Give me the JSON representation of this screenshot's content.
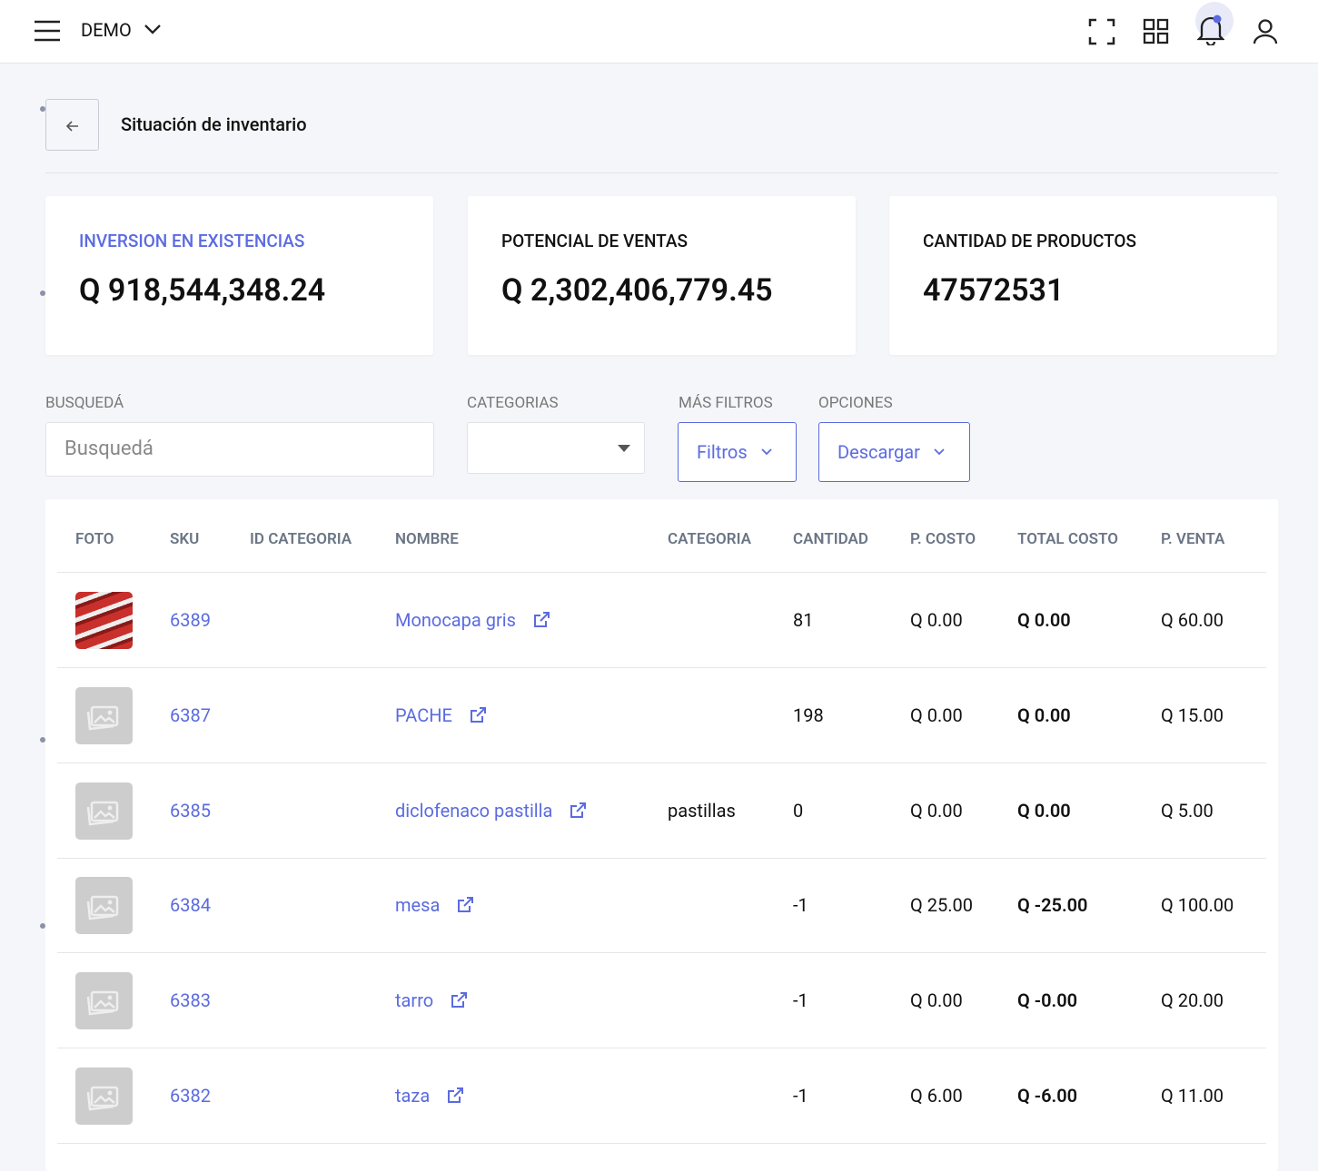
{
  "header": {
    "brand": "DEMO"
  },
  "page": {
    "title": "Situación de inventario"
  },
  "cards": [
    {
      "label": "INVERSION EN EXISTENCIAS",
      "value": "Q 918,544,348.24"
    },
    {
      "label": "POTENCIAL DE VENTAS",
      "value": "Q 2,302,406,779.45"
    },
    {
      "label": "CANTIDAD DE PRODUCTOS",
      "value": "47572531"
    }
  ],
  "filters": {
    "search_label": "BUSQUEDÁ",
    "search_placeholder": "Busquedá",
    "categories_label": "CATEGORIAS",
    "more_label": "MÁS FILTROS",
    "more_button": "Filtros",
    "options_label": "OPCIONES",
    "options_button": "Descargar"
  },
  "table": {
    "columns": [
      "FOTO",
      "SKU",
      "ID CATEGORIA",
      "NOMBRE",
      "CATEGORIA",
      "CANTIDAD",
      "P. COSTO",
      "TOTAL COSTO",
      "P. VENTA"
    ],
    "rows": [
      {
        "sku": "6389",
        "nombre": "Monocapa gris",
        "cantidad": "81",
        "p_costo": "Q 0.00",
        "total_costo": "Q 0.00",
        "p_venta": "Q 60.00"
      },
      {
        "sku": "6387",
        "nombre": "PACHE",
        "cantidad": "198",
        "p_costo": "Q 0.00",
        "total_costo": "Q 0.00",
        "p_venta": "Q 15.00"
      },
      {
        "sku": "6385",
        "nombre": "diclofenaco pastilla",
        "categoria": "pastillas",
        "cantidad": "0",
        "p_costo": "Q 0.00",
        "total_costo": "Q 0.00",
        "p_venta": "Q 5.00"
      },
      {
        "sku": "6384",
        "nombre": "mesa",
        "cantidad": "-1",
        "p_costo": "Q 25.00",
        "total_costo": "Q -25.00",
        "p_venta": "Q 100.00"
      },
      {
        "sku": "6383",
        "nombre": "tarro",
        "cantidad": "-1",
        "p_costo": "Q 0.00",
        "total_costo": "Q -0.00",
        "p_venta": "Q 20.00"
      },
      {
        "sku": "6382",
        "nombre": "taza",
        "cantidad": "-1",
        "p_costo": "Q 6.00",
        "total_costo": "Q -6.00",
        "p_venta": "Q 11.00"
      }
    ]
  }
}
